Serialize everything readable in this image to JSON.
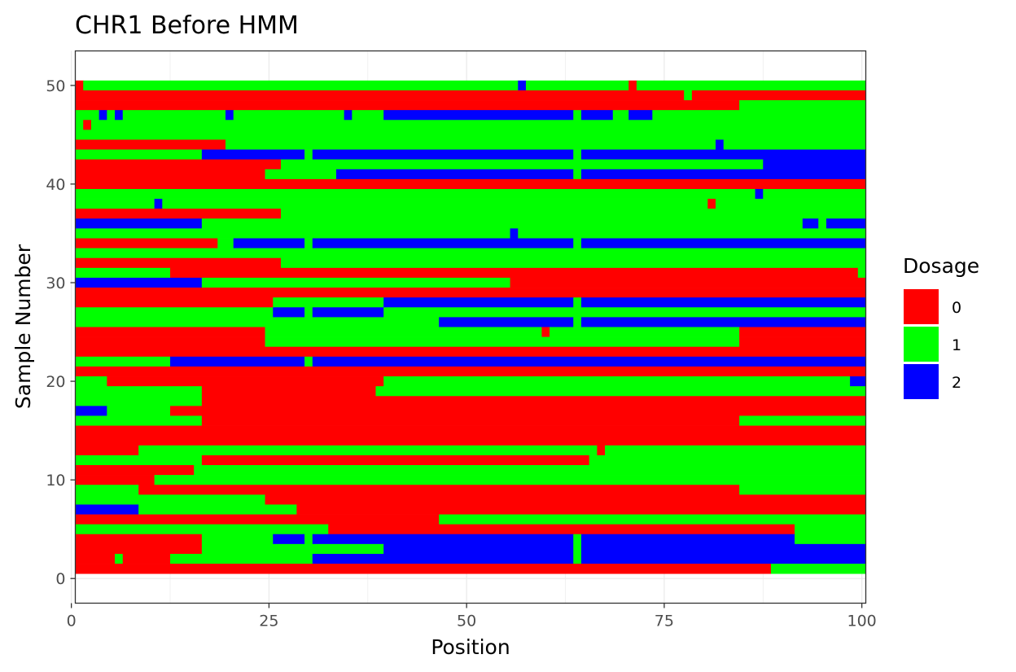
{
  "chart_data": {
    "type": "heatmap",
    "title": "CHR1 Before HMM",
    "xlabel": "Position",
    "ylabel": "Sample Number",
    "xlim": [
      0.5,
      100.5
    ],
    "ylim": [
      -2.5,
      53.5
    ],
    "x_ticks": [
      0,
      25,
      50,
      75,
      100
    ],
    "y_ticks": [
      0,
      10,
      20,
      30,
      40,
      50
    ],
    "grid": true,
    "legend_position": "right",
    "legend": {
      "title": "Dosage",
      "entries": [
        {
          "label": "0",
          "color": "#ff0000"
        },
        {
          "label": "1",
          "color": "#00ff00"
        },
        {
          "label": "2",
          "color": "#0000ff"
        }
      ]
    },
    "colors": {
      "0": "#ff0000",
      "1": "#00ff00",
      "2": "#0000ff"
    },
    "rows_note": "each row lists dosage runs as [start_position, end_position, dosage]",
    "rows": [
      {
        "sample": 50,
        "runs": [
          [
            1,
            1,
            0
          ],
          [
            2,
            56,
            1
          ],
          [
            57,
            57,
            2
          ],
          [
            58,
            70,
            1
          ],
          [
            71,
            71,
            0
          ],
          [
            72,
            100,
            1
          ]
        ]
      },
      {
        "sample": 49,
        "runs": [
          [
            1,
            77,
            0
          ],
          [
            78,
            78,
            1
          ],
          [
            79,
            100,
            0
          ]
        ]
      },
      {
        "sample": 48,
        "runs": [
          [
            1,
            84,
            0
          ],
          [
            85,
            100,
            1
          ]
        ]
      },
      {
        "sample": 47,
        "runs": [
          [
            1,
            3,
            1
          ],
          [
            4,
            4,
            2
          ],
          [
            5,
            5,
            1
          ],
          [
            6,
            6,
            2
          ],
          [
            7,
            19,
            1
          ],
          [
            20,
            20,
            2
          ],
          [
            21,
            34,
            1
          ],
          [
            35,
            35,
            2
          ],
          [
            36,
            39,
            1
          ],
          [
            40,
            63,
            2
          ],
          [
            64,
            64,
            1
          ],
          [
            65,
            68,
            2
          ],
          [
            69,
            70,
            1
          ],
          [
            71,
            73,
            2
          ],
          [
            74,
            100,
            1
          ]
        ]
      },
      {
        "sample": 46,
        "runs": [
          [
            1,
            1,
            1
          ],
          [
            2,
            2,
            0
          ],
          [
            3,
            100,
            1
          ]
        ]
      },
      {
        "sample": 45,
        "runs": [
          [
            1,
            100,
            1
          ]
        ]
      },
      {
        "sample": 44,
        "runs": [
          [
            1,
            19,
            0
          ],
          [
            20,
            81,
            1
          ],
          [
            82,
            82,
            2
          ],
          [
            83,
            100,
            1
          ]
        ]
      },
      {
        "sample": 43,
        "runs": [
          [
            1,
            16,
            1
          ],
          [
            17,
            29,
            2
          ],
          [
            30,
            30,
            1
          ],
          [
            31,
            63,
            2
          ],
          [
            64,
            64,
            1
          ],
          [
            65,
            100,
            2
          ]
        ]
      },
      {
        "sample": 42,
        "runs": [
          [
            1,
            26,
            0
          ],
          [
            27,
            87,
            1
          ],
          [
            88,
            100,
            2
          ]
        ]
      },
      {
        "sample": 41,
        "runs": [
          [
            1,
            24,
            0
          ],
          [
            25,
            33,
            1
          ],
          [
            34,
            63,
            2
          ],
          [
            64,
            64,
            1
          ],
          [
            65,
            100,
            2
          ]
        ]
      },
      {
        "sample": 40,
        "runs": [
          [
            1,
            100,
            0
          ]
        ]
      },
      {
        "sample": 39,
        "runs": [
          [
            1,
            86,
            1
          ],
          [
            87,
            87,
            2
          ],
          [
            88,
            100,
            1
          ]
        ]
      },
      {
        "sample": 38,
        "runs": [
          [
            1,
            10,
            1
          ],
          [
            11,
            11,
            2
          ],
          [
            12,
            80,
            1
          ],
          [
            81,
            81,
            0
          ],
          [
            82,
            100,
            1
          ]
        ]
      },
      {
        "sample": 37,
        "runs": [
          [
            1,
            26,
            0
          ],
          [
            27,
            100,
            1
          ]
        ]
      },
      {
        "sample": 36,
        "runs": [
          [
            1,
            16,
            2
          ],
          [
            17,
            92,
            1
          ],
          [
            93,
            94,
            2
          ],
          [
            95,
            95,
            1
          ],
          [
            96,
            100,
            2
          ]
        ]
      },
      {
        "sample": 35,
        "runs": [
          [
            1,
            55,
            1
          ],
          [
            56,
            56,
            2
          ],
          [
            57,
            100,
            1
          ]
        ]
      },
      {
        "sample": 34,
        "runs": [
          [
            1,
            18,
            0
          ],
          [
            19,
            20,
            1
          ],
          [
            21,
            29,
            2
          ],
          [
            30,
            30,
            1
          ],
          [
            31,
            63,
            2
          ],
          [
            64,
            64,
            1
          ],
          [
            65,
            100,
            2
          ]
        ]
      },
      {
        "sample": 33,
        "runs": [
          [
            1,
            100,
            1
          ]
        ]
      },
      {
        "sample": 32,
        "runs": [
          [
            1,
            26,
            0
          ],
          [
            27,
            100,
            1
          ]
        ]
      },
      {
        "sample": 31,
        "runs": [
          [
            1,
            12,
            1
          ],
          [
            13,
            99,
            0
          ],
          [
            100,
            100,
            1
          ]
        ]
      },
      {
        "sample": 30,
        "runs": [
          [
            1,
            16,
            2
          ],
          [
            17,
            55,
            1
          ],
          [
            56,
            100,
            0
          ]
        ]
      },
      {
        "sample": 29,
        "runs": [
          [
            1,
            100,
            0
          ]
        ]
      },
      {
        "sample": 28,
        "runs": [
          [
            1,
            25,
            0
          ],
          [
            26,
            39,
            1
          ],
          [
            40,
            63,
            2
          ],
          [
            64,
            64,
            1
          ],
          [
            65,
            100,
            2
          ]
        ]
      },
      {
        "sample": 27,
        "runs": [
          [
            1,
            25,
            1
          ],
          [
            26,
            29,
            2
          ],
          [
            30,
            30,
            1
          ],
          [
            31,
            39,
            2
          ],
          [
            40,
            100,
            1
          ]
        ]
      },
      {
        "sample": 26,
        "runs": [
          [
            1,
            46,
            1
          ],
          [
            47,
            63,
            2
          ],
          [
            64,
            64,
            1
          ],
          [
            65,
            100,
            2
          ]
        ]
      },
      {
        "sample": 25,
        "runs": [
          [
            1,
            24,
            0
          ],
          [
            25,
            59,
            1
          ],
          [
            60,
            60,
            0
          ],
          [
            61,
            84,
            1
          ],
          [
            85,
            100,
            0
          ]
        ]
      },
      {
        "sample": 24,
        "runs": [
          [
            1,
            24,
            0
          ],
          [
            25,
            84,
            1
          ],
          [
            85,
            100,
            0
          ]
        ]
      },
      {
        "sample": 23,
        "runs": [
          [
            1,
            100,
            0
          ]
        ]
      },
      {
        "sample": 22,
        "runs": [
          [
            1,
            12,
            1
          ],
          [
            13,
            29,
            2
          ],
          [
            30,
            30,
            1
          ],
          [
            31,
            100,
            2
          ]
        ]
      },
      {
        "sample": 21,
        "runs": [
          [
            1,
            100,
            0
          ]
        ]
      },
      {
        "sample": 20,
        "runs": [
          [
            1,
            4,
            1
          ],
          [
            5,
            39,
            0
          ],
          [
            40,
            98,
            1
          ],
          [
            99,
            100,
            2
          ]
        ]
      },
      {
        "sample": 19,
        "runs": [
          [
            1,
            16,
            1
          ],
          [
            17,
            38,
            0
          ],
          [
            39,
            100,
            1
          ]
        ]
      },
      {
        "sample": 18,
        "runs": [
          [
            1,
            16,
            1
          ],
          [
            17,
            100,
            0
          ]
        ]
      },
      {
        "sample": 17,
        "runs": [
          [
            1,
            4,
            2
          ],
          [
            5,
            12,
            1
          ],
          [
            13,
            100,
            0
          ]
        ]
      },
      {
        "sample": 16,
        "runs": [
          [
            1,
            16,
            1
          ],
          [
            17,
            84,
            0
          ],
          [
            85,
            100,
            1
          ]
        ]
      },
      {
        "sample": 15,
        "runs": [
          [
            1,
            100,
            0
          ]
        ]
      },
      {
        "sample": 14,
        "runs": [
          [
            1,
            100,
            0
          ]
        ]
      },
      {
        "sample": 13,
        "runs": [
          [
            1,
            8,
            0
          ],
          [
            9,
            66,
            1
          ],
          [
            67,
            67,
            0
          ],
          [
            68,
            100,
            1
          ]
        ]
      },
      {
        "sample": 12,
        "runs": [
          [
            1,
            16,
            1
          ],
          [
            17,
            65,
            0
          ],
          [
            66,
            100,
            1
          ]
        ]
      },
      {
        "sample": 11,
        "runs": [
          [
            1,
            15,
            0
          ],
          [
            16,
            100,
            1
          ]
        ]
      },
      {
        "sample": 10,
        "runs": [
          [
            1,
            10,
            0
          ],
          [
            11,
            100,
            1
          ]
        ]
      },
      {
        "sample": 9,
        "runs": [
          [
            1,
            8,
            1
          ],
          [
            9,
            84,
            0
          ],
          [
            85,
            100,
            1
          ]
        ]
      },
      {
        "sample": 8,
        "runs": [
          [
            1,
            24,
            1
          ],
          [
            25,
            100,
            0
          ]
        ]
      },
      {
        "sample": 7,
        "runs": [
          [
            1,
            8,
            2
          ],
          [
            9,
            28,
            1
          ],
          [
            29,
            100,
            0
          ]
        ]
      },
      {
        "sample": 6,
        "runs": [
          [
            1,
            46,
            0
          ],
          [
            47,
            100,
            1
          ]
        ]
      },
      {
        "sample": 5,
        "runs": [
          [
            1,
            32,
            1
          ],
          [
            33,
            91,
            0
          ],
          [
            92,
            100,
            1
          ]
        ]
      },
      {
        "sample": 4,
        "runs": [
          [
            1,
            16,
            0
          ],
          [
            17,
            25,
            1
          ],
          [
            26,
            29,
            2
          ],
          [
            30,
            30,
            1
          ],
          [
            31,
            63,
            2
          ],
          [
            64,
            64,
            1
          ],
          [
            65,
            91,
            2
          ],
          [
            92,
            100,
            1
          ]
        ]
      },
      {
        "sample": 3,
        "runs": [
          [
            1,
            16,
            0
          ],
          [
            17,
            39,
            1
          ],
          [
            40,
            63,
            2
          ],
          [
            64,
            64,
            1
          ],
          [
            65,
            100,
            2
          ]
        ]
      },
      {
        "sample": 2,
        "runs": [
          [
            1,
            5,
            0
          ],
          [
            6,
            6,
            1
          ],
          [
            7,
            12,
            0
          ],
          [
            13,
            30,
            1
          ],
          [
            31,
            63,
            2
          ],
          [
            64,
            64,
            1
          ],
          [
            65,
            100,
            2
          ]
        ]
      },
      {
        "sample": 1,
        "runs": [
          [
            1,
            88,
            0
          ],
          [
            89,
            100,
            1
          ]
        ]
      }
    ]
  }
}
